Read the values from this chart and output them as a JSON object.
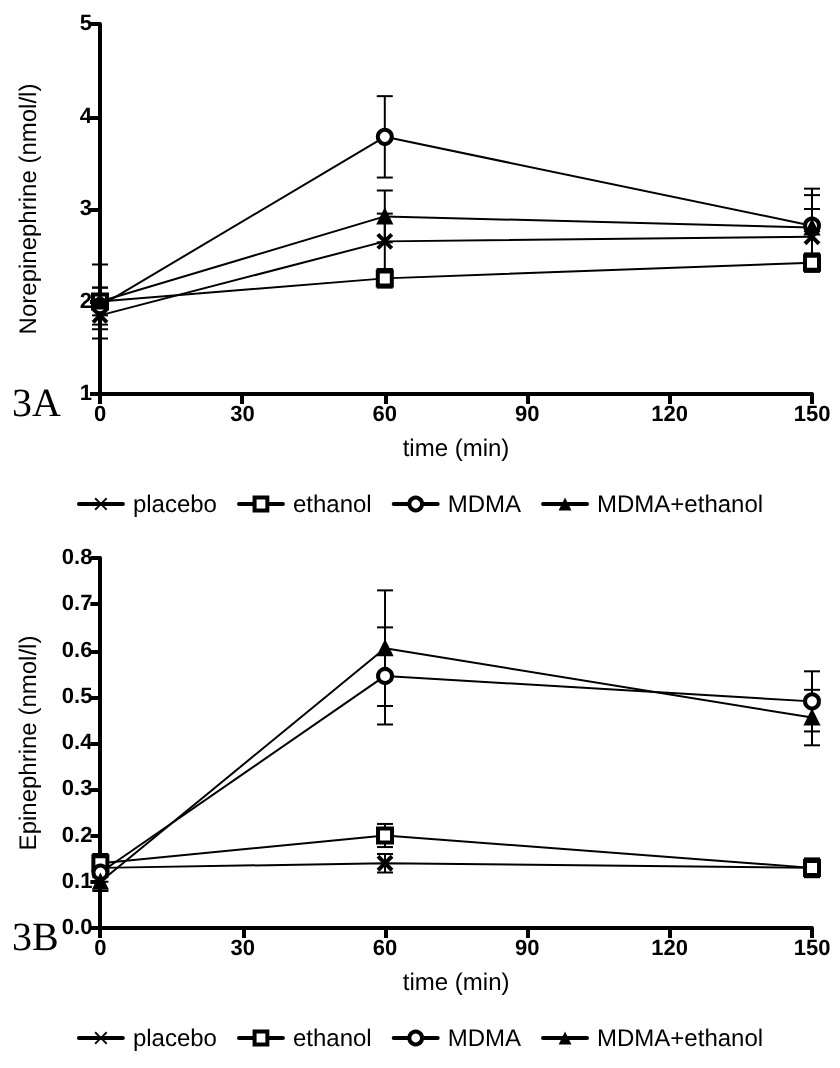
{
  "chart_data": [
    {
      "type": "line",
      "ylabel": "Norepinephrine (nmol/l)",
      "xlabel": "time (min)",
      "annotations": [
        "3A"
      ],
      "x": [
        0,
        60,
        150
      ],
      "xlim": [
        0,
        150
      ],
      "xticks": [
        0,
        30,
        60,
        90,
        120,
        150
      ],
      "ylim": [
        1,
        5
      ],
      "yticks": [
        1,
        2,
        3,
        4,
        5
      ],
      "grid": false,
      "legend": "bottom",
      "line_style": "solid",
      "series": [
        {
          "name": "placebo",
          "color": "#000000",
          "marker": "cross",
          "values": [
            1.85,
            2.65,
            2.7
          ],
          "errors": [
            0.15,
            0.3,
            0.3
          ]
        },
        {
          "name": "ethanol",
          "color": "#000000",
          "marker": "square",
          "values": [
            2.0,
            2.25,
            2.42
          ],
          "errors": [
            0.15,
            0.1,
            0.1
          ]
        },
        {
          "name": "MDMA",
          "color": "#000000",
          "marker": "circle",
          "values": [
            1.95,
            3.78,
            2.82
          ],
          "errors": [
            0.2,
            0.44,
            0.4
          ]
        },
        {
          "name": "MDMA+ethanol",
          "color": "#000000",
          "marker": "triangle",
          "values": [
            2.0,
            2.92,
            2.8
          ],
          "errors": [
            0.4,
            0.28,
            0.35
          ]
        }
      ]
    },
    {
      "type": "line",
      "ylabel": "Epinephrine (nmol/l)",
      "xlabel": "time (min)",
      "annotations": [
        "3B"
      ],
      "x": [
        0,
        60,
        150
      ],
      "xlim": [
        0,
        150
      ],
      "xticks": [
        0,
        30,
        60,
        90,
        120,
        150
      ],
      "ylim": [
        0,
        0.8
      ],
      "yticks": [
        {
          "value": 0,
          "label": "0.0"
        },
        0.1,
        0.2,
        0.3,
        0.4,
        0.5,
        0.6,
        0.7,
        0.8
      ],
      "grid": false,
      "legend": "bottom",
      "line_style": "solid",
      "series": [
        {
          "name": "placebo",
          "color": "#000000",
          "marker": "cross",
          "values": [
            0.13,
            0.14,
            0.13
          ],
          "errors": [
            0.02,
            0.02,
            0.02
          ]
        },
        {
          "name": "ethanol",
          "color": "#000000",
          "marker": "square",
          "values": [
            0.14,
            0.2,
            0.13
          ],
          "errors": [
            0.02,
            0.025,
            0.02
          ]
        },
        {
          "name": "MDMA",
          "color": "#000000",
          "marker": "circle",
          "values": [
            0.12,
            0.545,
            0.49
          ],
          "errors": [
            0.02,
            0.105,
            0.065
          ]
        },
        {
          "name": "MDMA+ethanol",
          "color": "#000000",
          "marker": "triangle",
          "values": [
            0.1,
            0.605,
            0.455
          ],
          "errors": [
            0.02,
            0.125,
            0.06
          ]
        }
      ]
    }
  ]
}
